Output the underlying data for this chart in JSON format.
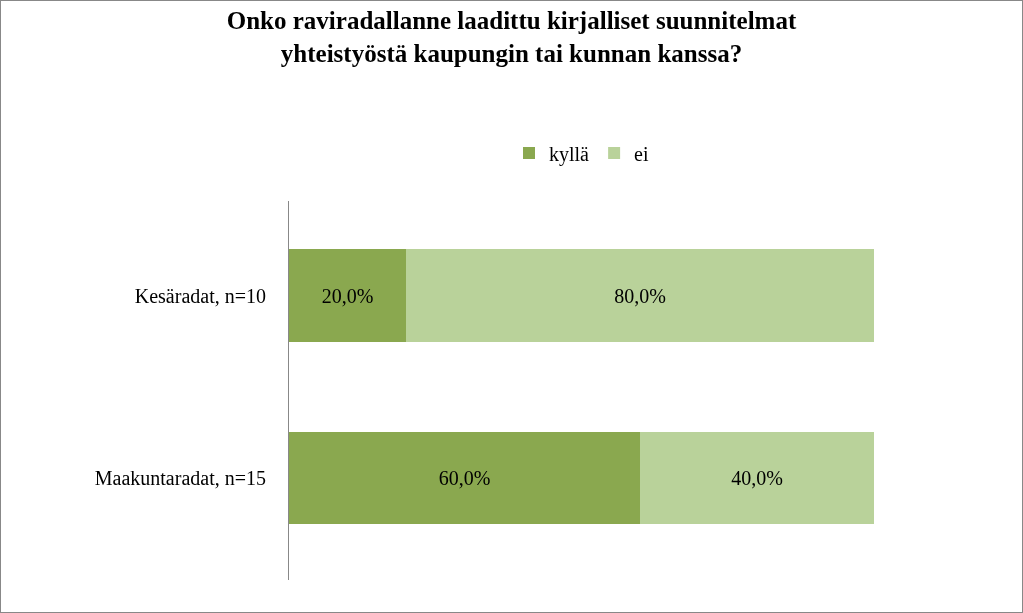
{
  "chart_data": {
    "type": "bar",
    "title": "Onko raviradallanne laadittu kirjalliset suunnitelmat\nyhteistyöstä kaupungin tai kunnan kanssa?",
    "orientation": "horizontal",
    "stacked": true,
    "categories": [
      "Kesäradat, n=10",
      "Maakuntaradat, n=15"
    ],
    "series": [
      {
        "name": "kyllä",
        "color": "#8aa84f",
        "values": [
          20,
          60
        ],
        "value_labels": [
          "20,0%",
          "60,0%"
        ]
      },
      {
        "name": "ei",
        "color": "#b9d29a",
        "values": [
          80,
          40
        ],
        "value_labels": [
          "80,0%",
          "40,0%"
        ]
      }
    ],
    "xlim": [
      0,
      100
    ],
    "tick_labels": "y",
    "legend": "top"
  }
}
